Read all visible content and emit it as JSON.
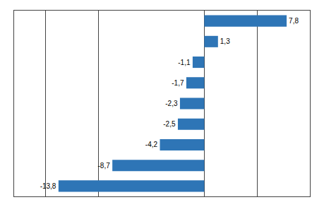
{
  "chart_data": {
    "type": "bar",
    "orientation": "horizontal",
    "categories": [
      null,
      null,
      null,
      null,
      null,
      null,
      null,
      null,
      null
    ],
    "values": [
      7.8,
      1.3,
      -1.1,
      -1.7,
      -2.3,
      -2.5,
      -4.2,
      -8.7,
      -13.8
    ],
    "value_labels": [
      "7,8",
      "1,3",
      "-1,1",
      "-1,7",
      "-2,3",
      "-2,5",
      "-4,2",
      "-8,7",
      "-13,8"
    ],
    "data_labels": true,
    "color": "#2e75b6",
    "xlim": [
      -18,
      10
    ],
    "xticks": [
      -15,
      -10,
      0,
      5
    ],
    "grid": true,
    "tick_labels": false
  }
}
